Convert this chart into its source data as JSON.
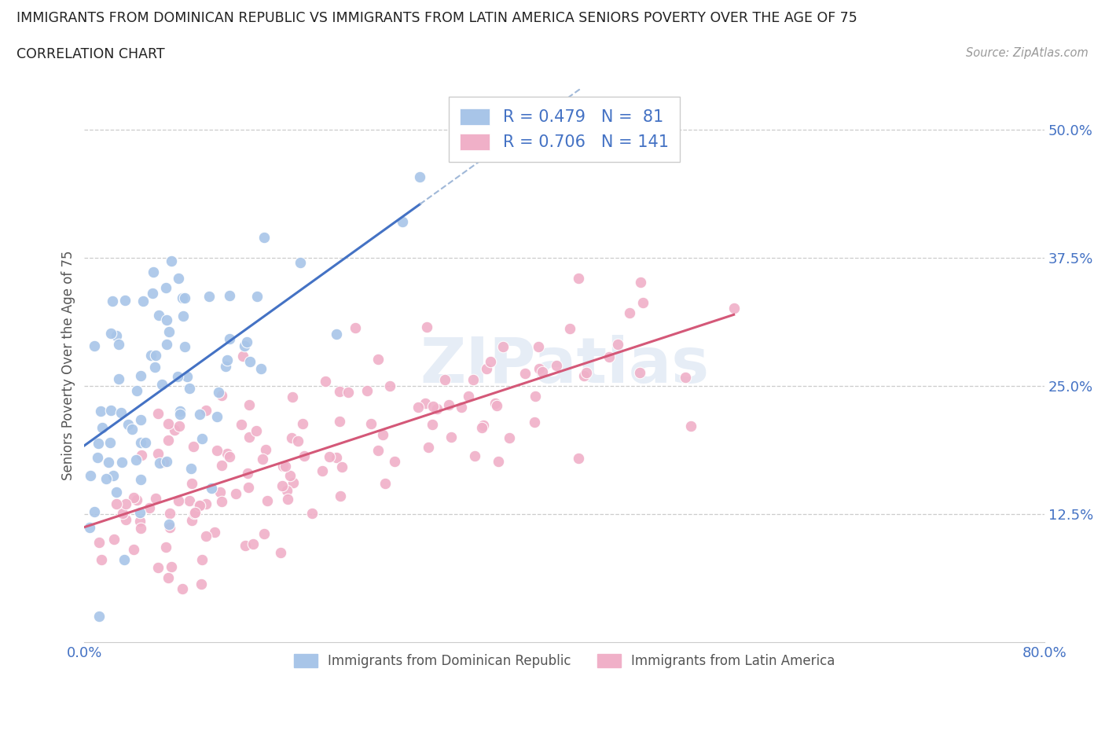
{
  "title": "IMMIGRANTS FROM DOMINICAN REPUBLIC VS IMMIGRANTS FROM LATIN AMERICA SENIORS POVERTY OVER THE AGE OF 75",
  "subtitle": "CORRELATION CHART",
  "source": "Source: ZipAtlas.com",
  "watermark": "ZIPatlas",
  "ylabel": "Seniors Poverty Over the Age of 75",
  "xlim": [
    0.0,
    0.8
  ],
  "ylim": [
    0.0,
    0.54
  ],
  "series1_name": "Immigrants from Dominican Republic",
  "series1_color": "#a8c5e8",
  "series1_R": 0.479,
  "series1_N": 81,
  "series1_line_color": "#4472c4",
  "series1_dash_color": "#a0b8d8",
  "series2_name": "Immigrants from Latin America",
  "series2_color": "#f0b0c8",
  "series2_R": 0.706,
  "series2_N": 141,
  "series2_line_color": "#d45878",
  "legend_R_color": "#4472c4",
  "legend_N_color": "#4472c4",
  "background_color": "#ffffff",
  "grid_color": "#cccccc",
  "title_color": "#222222",
  "axis_tick_color": "#4472c4",
  "seed1": 42,
  "seed2": 99
}
